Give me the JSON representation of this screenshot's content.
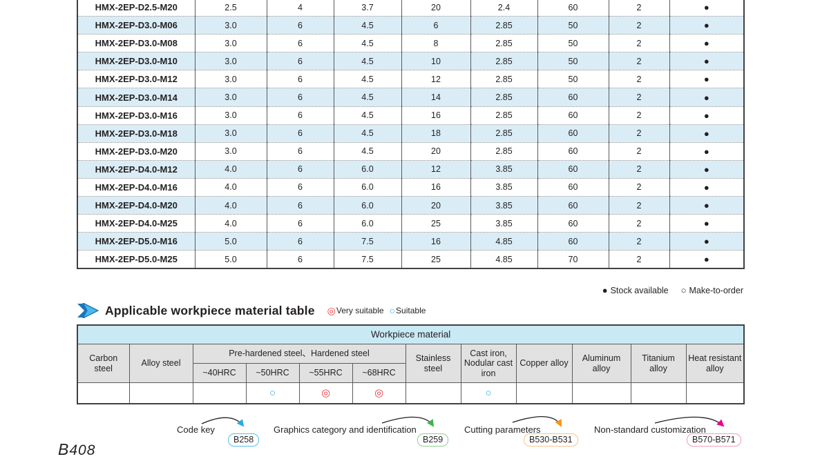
{
  "colors": {
    "stripe": "#daedf7",
    "band": "#c9eaf4",
    "header_gray": "#e1e1e2",
    "very_suitable_red": "#e8383d",
    "suitable_blue": "#29abe2"
  },
  "spec_table": {
    "rows": [
      {
        "model": "HMX-2EP-D2.5-M20",
        "values": [
          "2.5",
          "4",
          "3.7",
          "20",
          "2.4",
          "60",
          "2"
        ],
        "stock": "●"
      },
      {
        "model": "HMX-2EP-D3.0-M06",
        "values": [
          "3.0",
          "6",
          "4.5",
          "6",
          "2.85",
          "50",
          "2"
        ],
        "stock": "●"
      },
      {
        "model": "HMX-2EP-D3.0-M08",
        "values": [
          "3.0",
          "6",
          "4.5",
          "8",
          "2.85",
          "50",
          "2"
        ],
        "stock": "●"
      },
      {
        "model": "HMX-2EP-D3.0-M10",
        "values": [
          "3.0",
          "6",
          "4.5",
          "10",
          "2.85",
          "50",
          "2"
        ],
        "stock": "●"
      },
      {
        "model": "HMX-2EP-D3.0-M12",
        "values": [
          "3.0",
          "6",
          "4.5",
          "12",
          "2.85",
          "50",
          "2"
        ],
        "stock": "●"
      },
      {
        "model": "HMX-2EP-D3.0-M14",
        "values": [
          "3.0",
          "6",
          "4.5",
          "14",
          "2.85",
          "60",
          "2"
        ],
        "stock": "●"
      },
      {
        "model": "HMX-2EP-D3.0-M16",
        "values": [
          "3.0",
          "6",
          "4.5",
          "16",
          "2.85",
          "60",
          "2"
        ],
        "stock": "●"
      },
      {
        "model": "HMX-2EP-D3.0-M18",
        "values": [
          "3.0",
          "6",
          "4.5",
          "18",
          "2.85",
          "60",
          "2"
        ],
        "stock": "●"
      },
      {
        "model": "HMX-2EP-D3.0-M20",
        "values": [
          "3.0",
          "6",
          "4.5",
          "20",
          "2.85",
          "60",
          "2"
        ],
        "stock": "●"
      },
      {
        "model": "HMX-2EP-D4.0-M12",
        "values": [
          "4.0",
          "6",
          "6.0",
          "12",
          "3.85",
          "60",
          "2"
        ],
        "stock": "●"
      },
      {
        "model": "HMX-2EP-D4.0-M16",
        "values": [
          "4.0",
          "6",
          "6.0",
          "16",
          "3.85",
          "60",
          "2"
        ],
        "stock": "●"
      },
      {
        "model": "HMX-2EP-D4.0-M20",
        "values": [
          "4.0",
          "6",
          "6.0",
          "20",
          "3.85",
          "60",
          "2"
        ],
        "stock": "●"
      },
      {
        "model": "HMX-2EP-D4.0-M25",
        "values": [
          "4.0",
          "6",
          "6.0",
          "25",
          "3.85",
          "60",
          "2"
        ],
        "stock": "●"
      },
      {
        "model": "HMX-2EP-D5.0-M16",
        "values": [
          "5.0",
          "6",
          "7.5",
          "16",
          "4.85",
          "60",
          "2"
        ],
        "stock": "●"
      },
      {
        "model": "HMX-2EP-D5.0-M25",
        "values": [
          "5.0",
          "6",
          "7.5",
          "25",
          "4.85",
          "70",
          "2"
        ],
        "stock": "●"
      }
    ]
  },
  "stock_legend": {
    "available_symbol": "●",
    "available_label": "Stock available",
    "mto_symbol": "○",
    "mto_label": "Make-to-order"
  },
  "section": {
    "title": "Applicable workpiece material table",
    "very_suitable_symbol": "◎",
    "very_suitable_label": "Very suitable",
    "suitable_symbol": "○",
    "suitable_label": "Suitable"
  },
  "material_table": {
    "title": "Workpiece material",
    "left_headers": [
      "Carbon steel",
      "Alloy steel"
    ],
    "group_header": "Pre-hardened steel、Hardened steel",
    "sub_headers": [
      "~40HRC",
      "~50HRC",
      "~55HRC",
      "~68HRC"
    ],
    "right_headers": [
      "Stainless steel",
      "Cast iron, Nodular cast iron",
      "Copper alloy",
      "Aluminum alloy",
      "Titanium alloy",
      "Heat resistant alloy"
    ],
    "marks": [
      "",
      "",
      "",
      "○",
      "◎",
      "◎",
      "",
      "○",
      "",
      "",
      "",
      ""
    ]
  },
  "annotations": [
    {
      "label": "Code key",
      "badge": "B258",
      "arrow_color": "#29abe2",
      "badge_border": "#4fc1e9"
    },
    {
      "label": "Graphics category and identification",
      "badge": "B259",
      "arrow_color": "#39b54a",
      "badge_border": "#8ccf8e"
    },
    {
      "label": "Cutting parameters",
      "badge": "B530-B531",
      "arrow_color": "#f7941d",
      "badge_border": "#f9c387"
    },
    {
      "label": "Non-standard customization",
      "badge": "B570-B571",
      "arrow_color": "#ec008c",
      "badge_border": "#f49ac1"
    }
  ],
  "page_number_prefix": "B",
  "page_number": "408"
}
